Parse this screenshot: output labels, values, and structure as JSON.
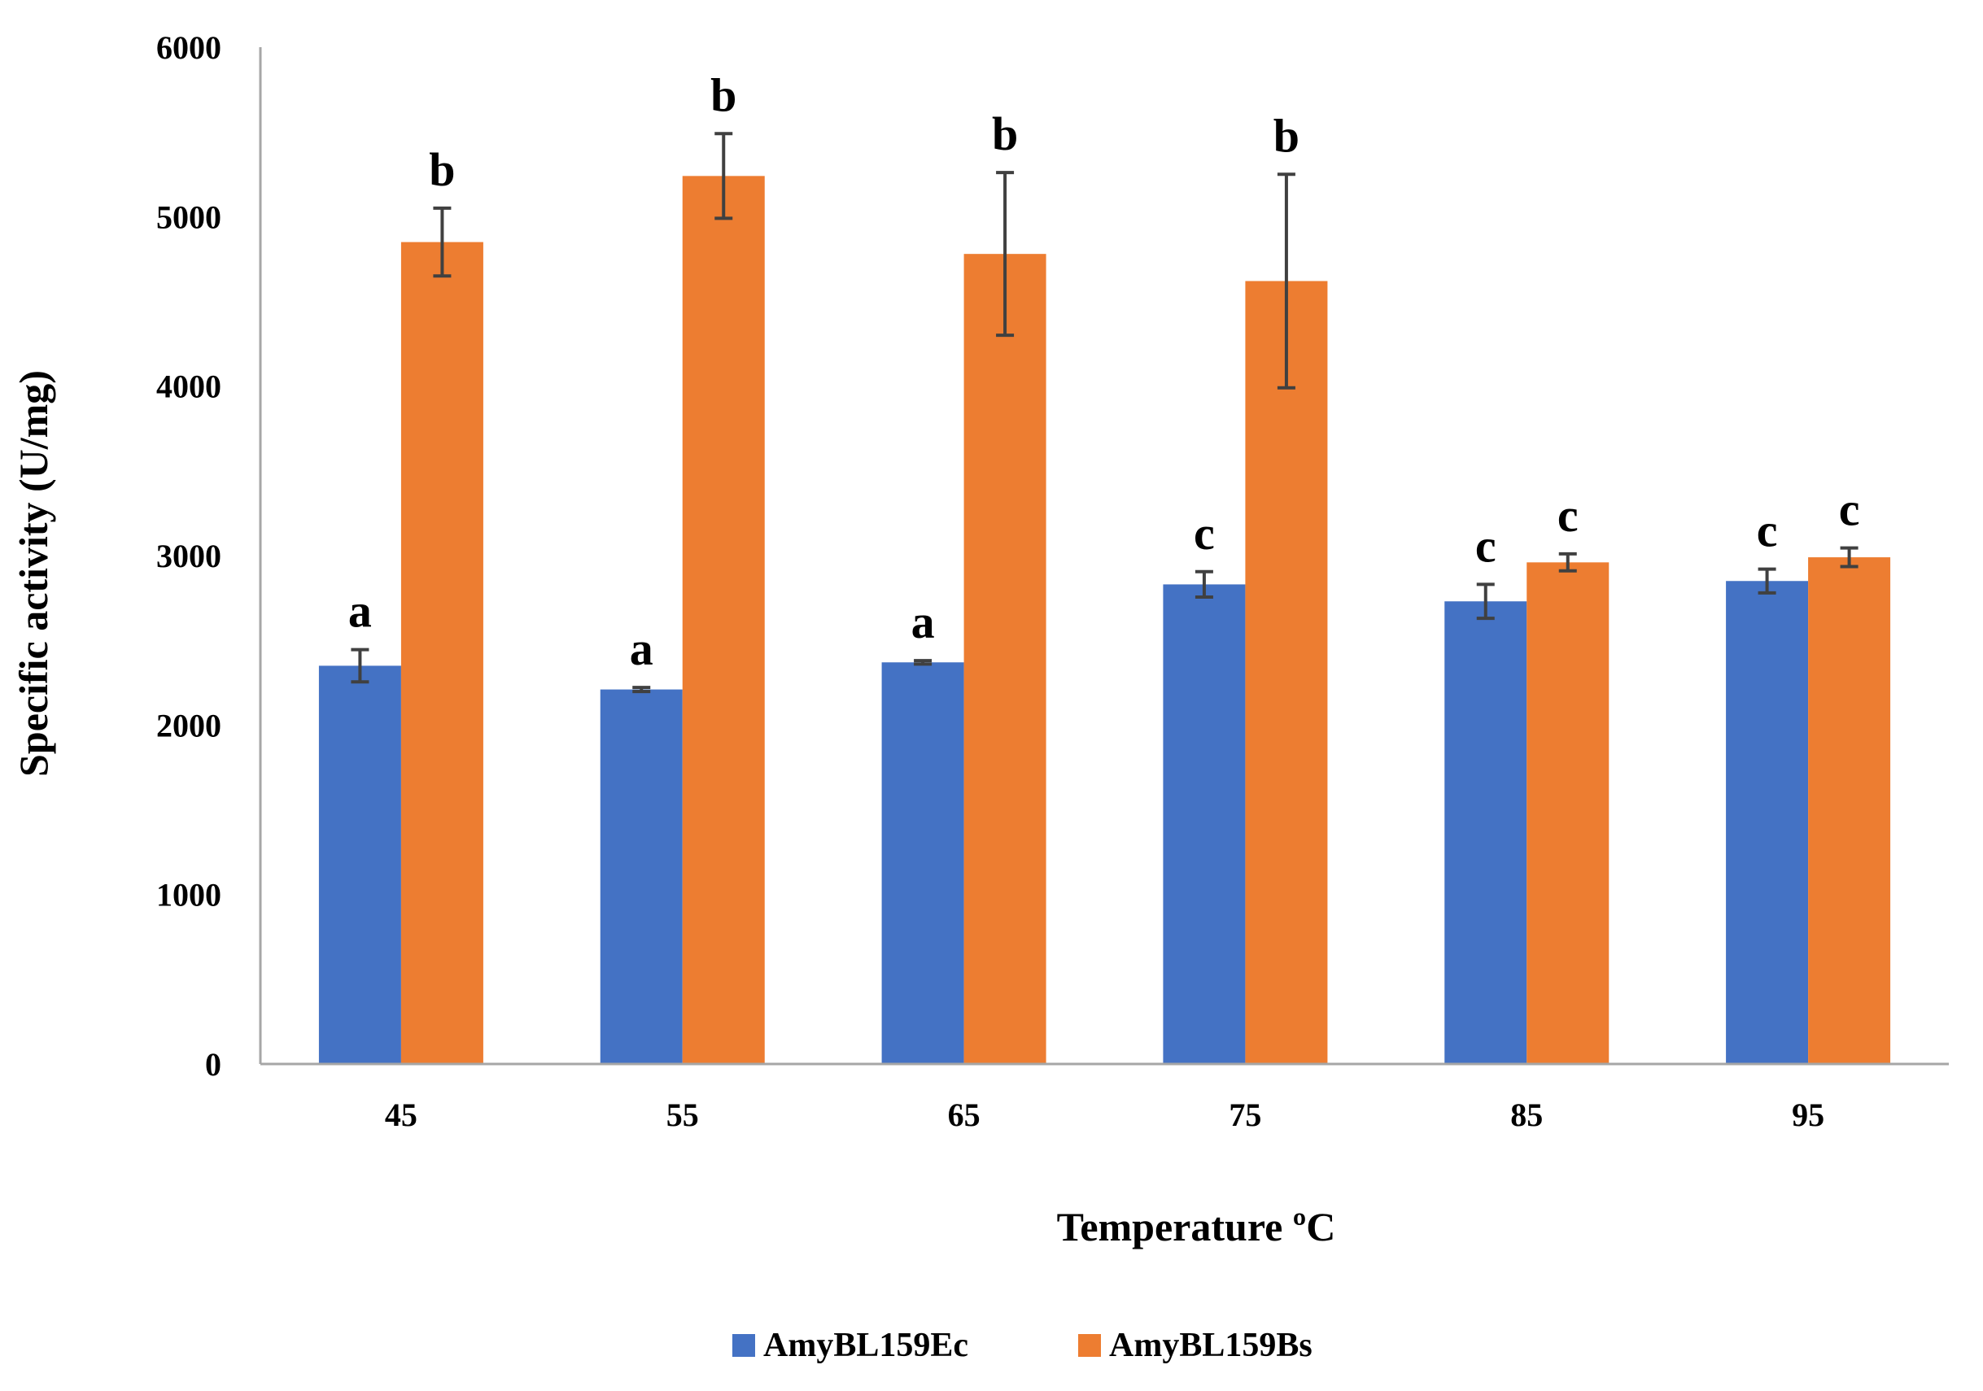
{
  "chart_data": {
    "type": "bar",
    "title": "",
    "xlabel": "Temperature  ºC",
    "ylabel": "Specific activity (U/mg)",
    "ylim": [
      0,
      6000
    ],
    "yticks": [
      0,
      1000,
      2000,
      3000,
      4000,
      5000,
      6000
    ],
    "grid": false,
    "legend_position": "bottom-center",
    "categories": [
      "45",
      "55",
      "65",
      "75",
      "85",
      "95"
    ],
    "series": [
      {
        "name": "AmyBL159Ec",
        "color": "#4472C4",
        "values": [
          2350,
          2210,
          2370,
          2830,
          2730,
          2850
        ],
        "errors": [
          95,
          12,
          10,
          75,
          100,
          70
        ],
        "sig_labels": [
          "a",
          "a",
          "a",
          "c",
          "c",
          "c"
        ]
      },
      {
        "name": "AmyBL159Bs",
        "color": "#ED7D31",
        "values": [
          4850,
          5240,
          4780,
          4620,
          2960,
          2990
        ],
        "errors": [
          200,
          250,
          480,
          630,
          50,
          55
        ],
        "sig_labels": [
          "b",
          "b",
          "b",
          "b",
          "c",
          "c"
        ]
      }
    ],
    "axis_color": "#A6A6A6",
    "error_bar_color": "#404040"
  }
}
